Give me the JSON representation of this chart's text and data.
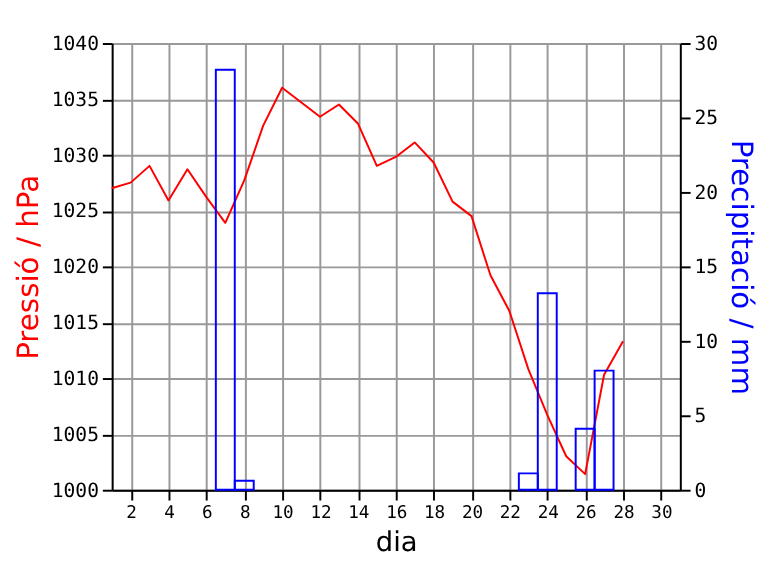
{
  "chart_data": {
    "type": "line",
    "xlabel": "dia",
    "ylabel": "Pressió / hPa",
    "y2label": "Precipitació / mm",
    "xlim": [
      1,
      31
    ],
    "xticks": [
      2,
      4,
      6,
      8,
      10,
      12,
      14,
      16,
      18,
      20,
      22,
      24,
      26,
      28,
      30
    ],
    "ylim": [
      1000,
      1040
    ],
    "yticks": [
      1000,
      1005,
      1010,
      1015,
      1020,
      1025,
      1030,
      1035,
      1040
    ],
    "y2lim": [
      0,
      30
    ],
    "y2ticks": [
      0,
      5,
      10,
      15,
      20,
      25,
      30
    ],
    "grid": true,
    "marker": "none",
    "line_style": "solid",
    "series": [
      {
        "color": "#ff0000",
        "x": [
          1,
          2,
          3,
          4,
          5,
          6,
          7,
          8,
          9,
          10,
          11,
          12,
          13,
          14,
          15,
          16,
          17,
          18,
          19,
          20,
          21,
          22,
          23,
          24,
          25,
          26,
          27,
          28
        ],
        "values": [
          1027.0,
          1027.5,
          1029.0,
          1025.9,
          1028.7,
          1026.2,
          1023.9,
          1027.7,
          1032.6,
          1036.0,
          1034.7,
          1033.4,
          1034.5,
          1032.8,
          1029.0,
          1029.8,
          1031.1,
          1029.3,
          1025.8,
          1024.5,
          1019.2,
          1016.0,
          1010.8,
          1006.7,
          1003.0,
          1001.4,
          1010.3,
          1013.3
        ]
      },
      {
        "type": "bar",
        "axis": "y2",
        "color": "#0000ff",
        "x": [
          7,
          8,
          23,
          24,
          26,
          27
        ],
        "values": [
          28.2,
          0.6,
          1.1,
          13.2,
          4.1,
          8.0
        ]
      }
    ]
  }
}
